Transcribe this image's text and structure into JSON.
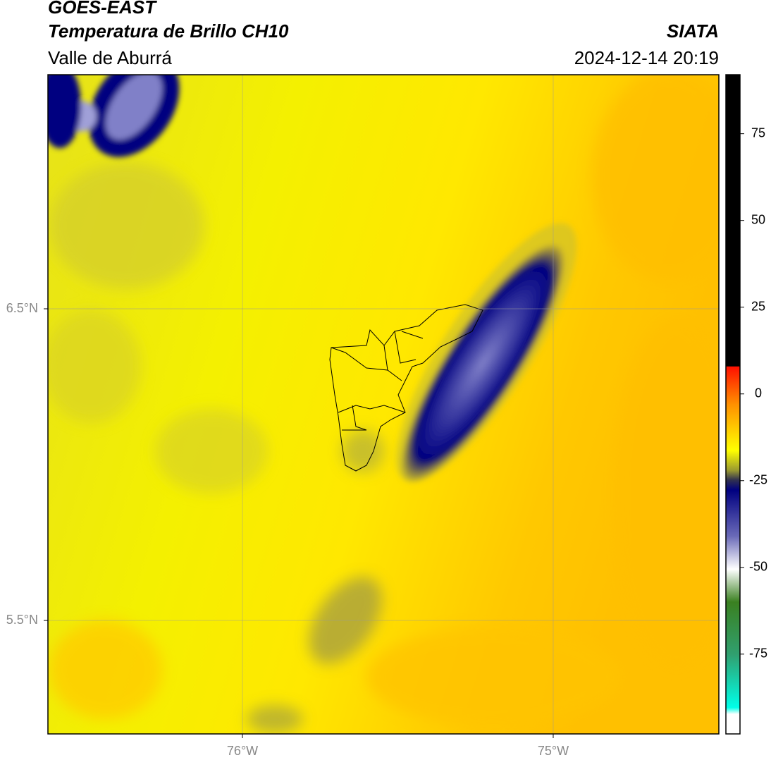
{
  "header": {
    "line1": "GOES-EAST",
    "line2": "Temperatura de Brillo CH10",
    "line3": "Valle de Aburrá",
    "source": "SIATA",
    "datetime": "2024-12-14 20:19"
  },
  "map": {
    "xlim": [
      -76.626,
      -74.467
    ],
    "xticks": [
      {
        "value": -76,
        "label": "76°W"
      },
      {
        "value": -75,
        "label": "75°W"
      }
    ],
    "ylim": [
      5.136,
      7.251
    ],
    "yticks": [
      {
        "value": 6.5,
        "label": "6.5°N"
      },
      {
        "value": 5.5,
        "label": "5.5°N"
      }
    ]
  },
  "colorbar": {
    "lim": [
      -98,
      92
    ],
    "ticks": [
      75,
      50,
      25,
      0,
      -25,
      -50,
      -75
    ]
  }
}
